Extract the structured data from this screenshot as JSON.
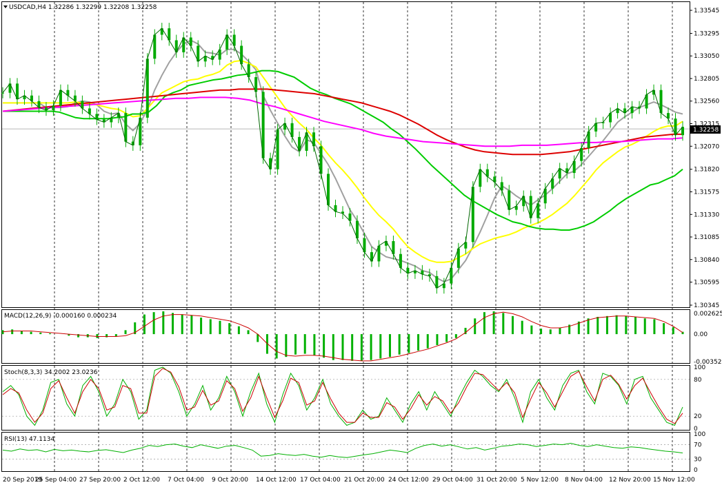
{
  "chart_data": {
    "type": "line",
    "main": {
      "title": "USDCAD,H4",
      "ohlc": "1.32286 1.32299 1.32208 1.32258",
      "current_price": 1.32258,
      "current_price_label": "1.32258",
      "ylim": [
        1.30345,
        1.33545
      ],
      "yticks": [
        "1.33545",
        "1.33295",
        "1.33050",
        "1.32805",
        "1.32560",
        "1.32315",
        "1.32070",
        "1.31820",
        "1.31575",
        "1.31330",
        "1.31085",
        "1.30840",
        "1.30595",
        "1.30345"
      ],
      "close": [
        1.3265,
        1.3275,
        1.3258,
        1.3262,
        1.3256,
        1.3249,
        1.3246,
        1.3251,
        1.3268,
        1.3262,
        1.3256,
        1.3248,
        1.3242,
        1.3236,
        1.3233,
        1.3238,
        1.3243,
        1.3212,
        1.3208,
        1.3238,
        1.3302,
        1.3328,
        1.3335,
        1.3322,
        1.3309,
        1.3325,
        1.3316,
        1.3299,
        1.3305,
        1.3301,
        1.3312,
        1.3328,
        1.3316,
        1.3296,
        1.3282,
        1.3266,
        1.3194,
        1.3182,
        1.3225,
        1.3232,
        1.3217,
        1.3202,
        1.3222,
        1.3207,
        1.3177,
        1.3143,
        1.3136,
        1.3134,
        1.3126,
        1.3107,
        1.3092,
        1.3082,
        1.3099,
        1.3104,
        1.309,
        1.3075,
        1.3069,
        1.3072,
        1.3068,
        1.3066,
        1.3053,
        1.3058,
        1.3075,
        1.3096,
        1.3103,
        1.3163,
        1.3182,
        1.3174,
        1.3168,
        1.3159,
        1.3138,
        1.3142,
        1.3153,
        1.3129,
        1.3145,
        1.3161,
        1.3172,
        1.3183,
        1.3178,
        1.3191,
        1.3205,
        1.3223,
        1.3232,
        1.3233,
        1.3243,
        1.3248,
        1.3243,
        1.325,
        1.3248,
        1.3263,
        1.3268,
        1.3243,
        1.3237,
        1.3219,
        1.3228
      ],
      "indicators": [
        {
          "color": "#a0a0a0",
          "values": [
            1.3254,
            1.3254,
            1.3254,
            1.3254,
            1.3254,
            1.3254,
            1.3249,
            1.3249,
            1.3249,
            1.325,
            1.3254,
            1.3256,
            1.3255,
            1.3252,
            1.3245,
            1.3242,
            1.3243,
            1.3231,
            1.3224,
            1.3232,
            1.3247,
            1.3268,
            1.3284,
            1.3298,
            1.3309,
            1.3318,
            1.3322,
            1.3318,
            1.3309,
            1.3308,
            1.3306,
            1.3312,
            1.3312,
            1.3307,
            1.3299,
            1.329,
            1.3262,
            1.3246,
            1.3232,
            1.3218,
            1.3206,
            1.3201,
            1.3214,
            1.3211,
            1.3199,
            1.3187,
            1.3172,
            1.3155,
            1.3138,
            1.3126,
            1.3112,
            1.3098,
            1.3092,
            1.3087,
            1.3085,
            1.3083,
            1.308,
            1.3077,
            1.3072,
            1.307,
            1.3064,
            1.306,
            1.3063,
            1.3073,
            1.3083,
            1.3098,
            1.3114,
            1.3132,
            1.3151,
            1.3164,
            1.3159,
            1.3153,
            1.3148,
            1.3143,
            1.3149,
            1.3154,
            1.3161,
            1.3169,
            1.3177,
            1.318,
            1.3187,
            1.3196,
            1.3205,
            1.3213,
            1.3223,
            1.3233,
            1.3239,
            1.3244,
            1.3249,
            1.3252,
            1.3255,
            1.3252,
            1.3248,
            1.3244,
            1.3242
          ]
        },
        {
          "color": "#ffff00",
          "values": [
            1.3254,
            1.3254,
            1.3254,
            1.3254,
            1.3254,
            1.3254,
            1.3254,
            1.3254,
            1.3254,
            1.3254,
            1.3255,
            1.3254,
            1.3253,
            1.3252,
            1.325,
            1.3248,
            1.3247,
            1.3243,
            1.3239,
            1.324,
            1.3248,
            1.3257,
            1.3265,
            1.3269,
            1.3273,
            1.3277,
            1.3279,
            1.328,
            1.3283,
            1.3285,
            1.3288,
            1.3295,
            1.3299,
            1.33,
            1.3297,
            1.3293,
            1.3282,
            1.3271,
            1.326,
            1.3249,
            1.324,
            1.3232,
            1.3225,
            1.3216,
            1.3208,
            1.3198,
            1.3189,
            1.3181,
            1.3172,
            1.3162,
            1.3151,
            1.3141,
            1.3132,
            1.3125,
            1.3117,
            1.3107,
            1.3098,
            1.3092,
            1.3087,
            1.3083,
            1.3081,
            1.3081,
            1.3082,
            1.3086,
            1.309,
            1.3096,
            1.3101,
            1.3104,
            1.3107,
            1.3109,
            1.3111,
            1.3114,
            1.3118,
            1.3121,
            1.3124,
            1.3128,
            1.3133,
            1.3139,
            1.3145,
            1.3153,
            1.3162,
            1.3171,
            1.3181,
            1.3189,
            1.3195,
            1.3201,
            1.3206,
            1.3209,
            1.3213,
            1.3218,
            1.3223,
            1.3227,
            1.3229,
            1.3229,
            1.3234
          ]
        },
        {
          "color": "#00cc00",
          "values": [
            1.3245,
            1.3245,
            1.3245,
            1.3245,
            1.3245,
            1.3245,
            1.3245,
            1.3244,
            1.3241,
            1.3238,
            1.3237,
            1.3237,
            1.3237,
            1.3237,
            1.3238,
            1.3239,
            1.3242,
            1.3242,
            1.3244,
            1.3251,
            1.3261,
            1.3265,
            1.3268,
            1.3273,
            1.3275,
            1.3277,
            1.3279,
            1.328,
            1.3282,
            1.3284,
            1.3285,
            1.3287,
            1.3289,
            1.3289,
            1.3288,
            1.3285,
            1.3282,
            1.3276,
            1.327,
            1.3266,
            1.3263,
            1.3259,
            1.3256,
            1.3253,
            1.3248,
            1.3243,
            1.3238,
            1.3233,
            1.3226,
            1.322,
            1.3212,
            1.3204,
            1.3195,
            1.3186,
            1.3178,
            1.317,
            1.3162,
            1.3154,
            1.3148,
            1.3143,
            1.3138,
            1.3133,
            1.3129,
            1.3125,
            1.3123,
            1.312,
            1.3118,
            1.3117,
            1.3117,
            1.3116,
            1.3116,
            1.3118,
            1.3121,
            1.3125,
            1.3131,
            1.3137,
            1.3144,
            1.315,
            1.3155,
            1.316,
            1.3165,
            1.3167,
            1.3171,
            1.3175,
            1.3182
          ]
        },
        {
          "color": "#dd0000",
          "values": [
            1.3245,
            1.3246,
            1.3247,
            1.3248,
            1.3249,
            1.325,
            1.3251,
            1.3252,
            1.3253,
            1.3254,
            1.3255,
            1.3256,
            1.3257,
            1.3258,
            1.3259,
            1.326,
            1.3261,
            1.3262,
            1.3263,
            1.3264,
            1.3265,
            1.3266,
            1.3267,
            1.3268,
            1.3268,
            1.3269,
            1.3269,
            1.3269,
            1.3269,
            1.3268,
            1.3267,
            1.3266,
            1.3265,
            1.3264,
            1.3262,
            1.326,
            1.3258,
            1.3256,
            1.3254,
            1.3251,
            1.3248,
            1.3245,
            1.3241,
            1.3236,
            1.3231,
            1.3225,
            1.3219,
            1.3214,
            1.321,
            1.3206,
            1.3203,
            1.3201,
            1.32,
            1.3199,
            1.3198,
            1.3198,
            1.3198,
            1.3198,
            1.3199,
            1.32,
            1.3201,
            1.3203,
            1.3205,
            1.3207,
            1.3209,
            1.3211,
            1.3213,
            1.3215,
            1.3217,
            1.3218,
            1.3219,
            1.322,
            1.322
          ]
        },
        {
          "color": "#ff00ff",
          "values": [
            1.3245,
            1.3246,
            1.3247,
            1.3248,
            1.3249,
            1.325,
            1.3251,
            1.3252,
            1.3253,
            1.3254,
            1.3255,
            1.3256,
            1.3257,
            1.3258,
            1.3259,
            1.3259,
            1.326,
            1.326,
            1.326,
            1.3259,
            1.3257,
            1.3253,
            1.325,
            1.3246,
            1.3242,
            1.3238,
            1.3234,
            1.3231,
            1.3228,
            1.3225,
            1.3221,
            1.3218,
            1.3216,
            1.3214,
            1.3212,
            1.3211,
            1.321,
            1.3209,
            1.3208,
            1.3207,
            1.3207,
            1.3207,
            1.3208,
            1.3208,
            1.3208,
            1.3209,
            1.321,
            1.3211,
            1.3211,
            1.3212,
            1.3212,
            1.3213,
            1.3214,
            1.3215,
            1.3215,
            1.3216
          ]
        }
      ]
    },
    "macd": {
      "title": "MACD(12,26,9) -0.000160 0.000234",
      "ylim": [
        -0.0035,
        0.0029
      ],
      "yticks": [
        "0.002625",
        "0.00",
        "-0.00352"
      ],
      "histogram": [
        0.0005,
        0.0006,
        0.0004,
        0.0003,
        0.0002,
        0.0001,
        0.0,
        -0.0002,
        -0.0004,
        -0.0004,
        -0.0005,
        -0.0004,
        -0.0003,
        0.0005,
        0.0015,
        0.0025,
        0.0028,
        0.0029,
        0.0027,
        0.0025,
        0.0024,
        0.0021,
        0.0019,
        0.0017,
        0.0014,
        0.001,
        0.0005,
        -0.001,
        -0.0025,
        -0.0031,
        -0.0029,
        -0.0026,
        -0.0025,
        -0.0027,
        -0.003,
        -0.0033,
        -0.0033,
        -0.0034,
        -0.0034,
        -0.0033,
        -0.0031,
        -0.0029,
        -0.0026,
        -0.0024,
        -0.0021,
        -0.0018,
        -0.0014,
        -0.001,
        -0.0005,
        0.0008,
        0.002,
        0.0028,
        0.0029,
        0.0027,
        0.0023,
        0.0017,
        0.0011,
        0.0007,
        0.0006,
        0.0008,
        0.0012,
        0.0016,
        0.002,
        0.0022,
        0.0023,
        0.0024,
        0.0023,
        0.0022,
        0.002,
        0.0019,
        0.0014,
        0.0009,
        0.0003
      ],
      "signal": [
        0.0003,
        0.0004,
        0.0004,
        0.0004,
        0.0003,
        0.0002,
        0.0001,
        0.0,
        -0.0001,
        -0.0002,
        -0.0003,
        -0.0003,
        -0.0003,
        -0.0002,
        0.0002,
        0.001,
        0.0018,
        0.0023,
        0.0025,
        0.0025,
        0.0024,
        0.0023,
        0.0021,
        0.0019,
        0.0017,
        0.0013,
        0.0008,
        0.0,
        -0.0012,
        -0.0022,
        -0.0027,
        -0.0028,
        -0.0027,
        -0.0027,
        -0.0028,
        -0.003,
        -0.0032,
        -0.0033,
        -0.0034,
        -0.0034,
        -0.0032,
        -0.003,
        -0.0028,
        -0.0025,
        -0.0022,
        -0.0019,
        -0.0015,
        -0.0011,
        -0.0006,
        0.0002,
        0.0012,
        0.0021,
        0.0026,
        0.0028,
        0.0026,
        0.0022,
        0.0016,
        0.0011,
        0.0008,
        0.0008,
        0.001,
        0.0014,
        0.0018,
        0.0021,
        0.0022,
        0.0023,
        0.0023,
        0.0022,
        0.0021,
        0.002,
        0.0016,
        0.001,
        0.0002
      ]
    },
    "stoch": {
      "title": "Stoch(8,3,3) 34.2002 23.0236",
      "ylim": [
        0,
        100
      ],
      "yticks": [
        "100",
        "80",
        "20",
        "0"
      ],
      "main": [
        60,
        70,
        55,
        20,
        5,
        30,
        75,
        80,
        40,
        20,
        70,
        85,
        60,
        20,
        40,
        80,
        60,
        15,
        30,
        95,
        100,
        90,
        60,
        20,
        40,
        70,
        30,
        50,
        85,
        60,
        20,
        60,
        90,
        40,
        10,
        55,
        90,
        70,
        30,
        50,
        80,
        40,
        20,
        5,
        10,
        30,
        15,
        20,
        50,
        30,
        10,
        40,
        60,
        30,
        60,
        40,
        20,
        50,
        75,
        95,
        85,
        70,
        60,
        80,
        50,
        10,
        60,
        80,
        50,
        30,
        70,
        90,
        95,
        60,
        40,
        90,
        85,
        70,
        40,
        80,
        85,
        50,
        30,
        10,
        5,
        35
      ],
      "signal": [
        55,
        65,
        58,
        30,
        10,
        25,
        65,
        78,
        50,
        25,
        60,
        80,
        65,
        30,
        35,
        70,
        65,
        25,
        25,
        85,
        98,
        92,
        68,
        30,
        35,
        62,
        38,
        45,
        78,
        65,
        28,
        50,
        85,
        50,
        18,
        45,
        82,
        75,
        38,
        45,
        75,
        48,
        25,
        10,
        10,
        25,
        18,
        18,
        42,
        35,
        15,
        32,
        55,
        38,
        52,
        45,
        25,
        42,
        68,
        90,
        88,
        75,
        62,
        75,
        58,
        18,
        48,
        75,
        58,
        35,
        60,
        85,
        93,
        68,
        45,
        80,
        87,
        72,
        48,
        70,
        82,
        58,
        35,
        15,
        8,
        25
      ]
    },
    "rsi": {
      "title": "RSI(13) 47.1134",
      "ylim": [
        0,
        100
      ],
      "yticks": [
        "100",
        "70",
        "30",
        "0"
      ],
      "values": [
        55,
        52,
        58,
        54,
        56,
        50,
        57,
        53,
        55,
        52,
        50,
        54,
        56,
        52,
        48,
        55,
        60,
        68,
        65,
        70,
        72,
        66,
        62,
        70,
        65,
        60,
        66,
        68,
        62,
        55,
        38,
        40,
        45,
        42,
        40,
        43,
        38,
        35,
        40,
        36,
        34,
        38,
        42,
        45,
        50,
        55,
        52,
        48,
        60,
        68,
        72,
        66,
        70,
        64,
        58,
        62,
        55,
        60,
        66,
        68,
        72,
        70,
        65,
        68,
        72,
        70,
        74,
        68,
        65,
        70,
        66,
        62,
        60,
        64,
        62,
        58,
        55,
        52,
        50,
        47
      ]
    },
    "x_labels": [
      "20 Sep 2019",
      "25 Sep 04:00",
      "27 Sep 20:00",
      "2 Oct 12:00",
      "7 Oct 04:00",
      "9 Oct 20:00",
      "14 Oct 12:00",
      "17 Oct 04:00",
      "21 Oct 20:00",
      "24 Oct 12:00",
      "29 Oct 04:00",
      "31 Oct 20:00",
      "5 Nov 12:00",
      "8 Nov 04:00",
      "12 Nov 20:00",
      "15 Nov 12:00"
    ]
  }
}
